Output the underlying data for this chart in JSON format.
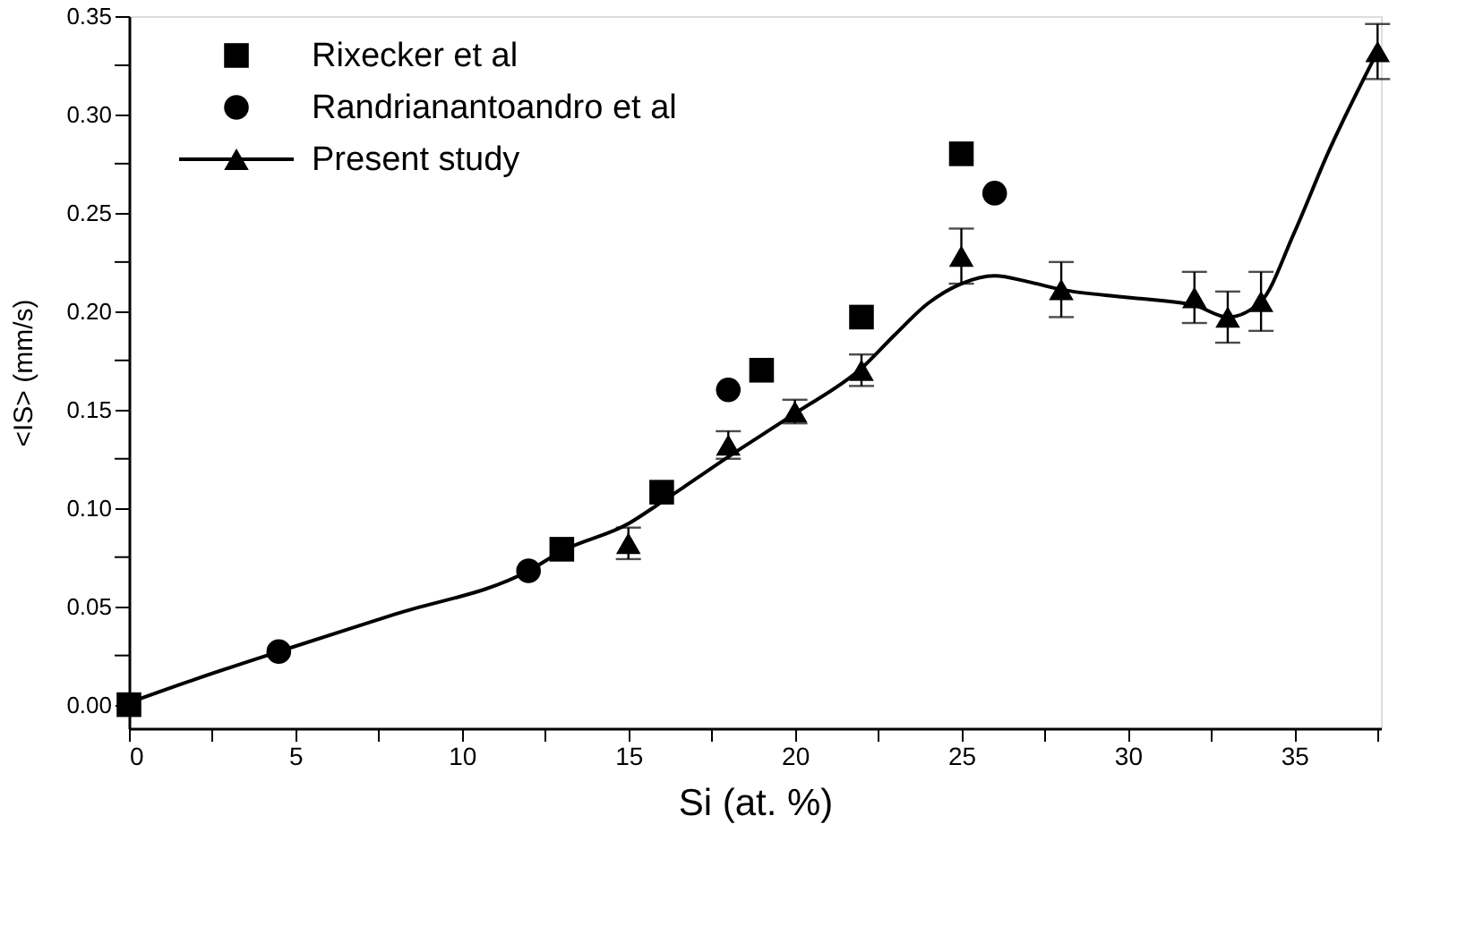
{
  "chart_data": {
    "type": "scatter",
    "xlabel": "Si  (at. %)",
    "ylabel": "<IS>  (mm/s)",
    "xlim": [
      0,
      37.6
    ],
    "ylim": [
      -0.012,
      0.35
    ],
    "xticks": [
      0,
      {
        "value": 2.5,
        "label": null
      },
      5,
      {
        "value": 7.5,
        "label": null
      },
      10,
      {
        "value": 12.5,
        "label": null
      },
      15,
      {
        "value": 17.5,
        "label": null
      },
      20,
      {
        "value": 22.5,
        "label": null
      },
      25,
      {
        "value": 27.5,
        "label": null
      },
      30,
      {
        "value": 32.5,
        "label": null
      },
      35,
      {
        "value": 37.5,
        "label": null
      }
    ],
    "yticks": [
      {
        "value": 0,
        "label": "0.00"
      },
      {
        "value": 0.025,
        "label": null
      },
      {
        "value": 0.05,
        "label": "0.05"
      },
      {
        "value": 0.075,
        "label": null
      },
      {
        "value": 0.1,
        "label": "0.10"
      },
      {
        "value": 0.125,
        "label": null
      },
      {
        "value": 0.15,
        "label": "0.15"
      },
      {
        "value": 0.175,
        "label": null
      },
      {
        "value": 0.2,
        "label": "0.20"
      },
      {
        "value": 0.225,
        "label": null
      },
      {
        "value": 0.25,
        "label": "0.25"
      },
      {
        "value": 0.275,
        "label": null
      },
      {
        "value": 0.3,
        "label": "0.30"
      },
      {
        "value": 0.325,
        "label": null
      },
      {
        "value": 0.35,
        "label": "0.35"
      }
    ],
    "grid": false,
    "legend": "top left",
    "series": [
      {
        "name": "Rixecker et al",
        "marker": "square",
        "color": "#000000",
        "x": [
          0,
          13,
          16,
          19,
          22,
          25
        ],
        "values": [
          0.0,
          0.079,
          0.108,
          0.17,
          0.197,
          0.28
        ]
      },
      {
        "name": "Randrianantoandro et al",
        "marker": "circle",
        "color": "#000000",
        "x": [
          4.5,
          12,
          18,
          26
        ],
        "values": [
          0.027,
          0.068,
          0.16,
          0.26
        ]
      },
      {
        "name": "Present study",
        "marker": "triangle",
        "color": "#000000",
        "x": [
          15,
          18,
          20,
          22,
          25,
          28,
          32,
          33,
          34,
          37.5
        ],
        "values": [
          0.082,
          0.132,
          0.149,
          0.17,
          0.228,
          0.211,
          0.207,
          0.197,
          0.205,
          0.332
        ],
        "errors": [
          0.008,
          0.007,
          0.006,
          0.008,
          0.014,
          0.014,
          0.013,
          0.013,
          0.015,
          0.014
        ]
      },
      {
        "type": "line",
        "color": "#000000",
        "line_style": "solid",
        "x": [
          0,
          2,
          4.5,
          8,
          12,
          13,
          15,
          16,
          18,
          20,
          22,
          23,
          24,
          25,
          26,
          27,
          28,
          30,
          32,
          33,
          34,
          35,
          36,
          37.5
        ],
        "values": [
          0.001,
          0.013,
          0.027,
          0.046,
          0.068,
          0.078,
          0.092,
          0.103,
          0.126,
          0.148,
          0.171,
          0.188,
          0.204,
          0.214,
          0.218,
          0.215,
          0.211,
          0.207,
          0.203,
          0.197,
          0.205,
          0.24,
          0.28,
          0.332
        ]
      }
    ]
  }
}
